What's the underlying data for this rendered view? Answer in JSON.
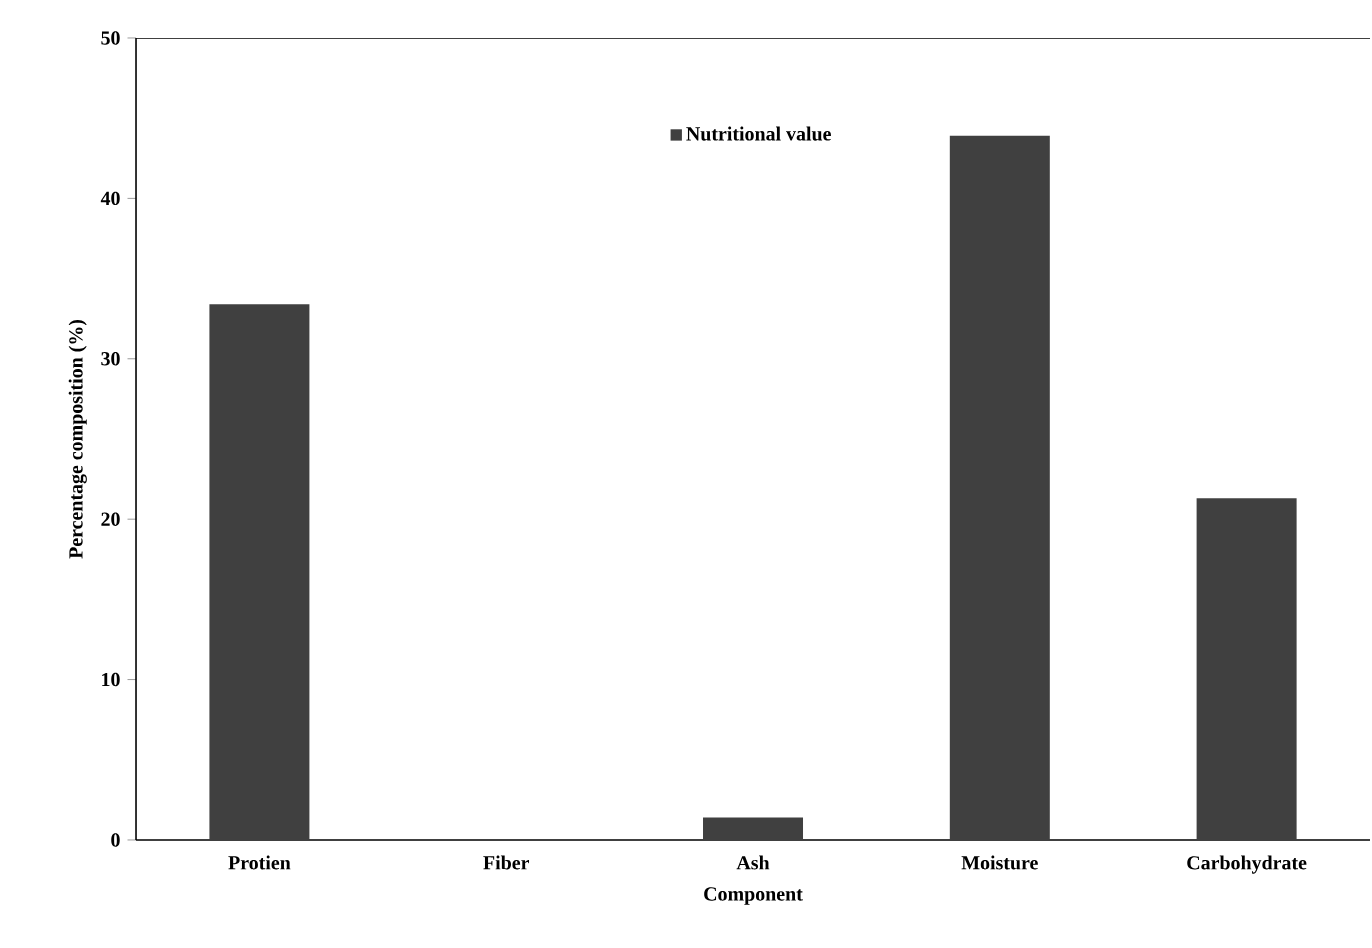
{
  "chart_data": {
    "type": "bar",
    "xlabel": "Component",
    "ylabel": "Percentage composition (%)",
    "categories": [
      "Protien",
      "Fiber",
      "Ash",
      "Moisture",
      "Carbohydrate"
    ],
    "series": [
      {
        "name": "Nutritional value",
        "color": "#404040",
        "values": [
          33.4,
          0,
          1.4,
          43.9,
          21.3
        ]
      }
    ],
    "ylim": [
      0,
      50
    ],
    "yticks": [
      0,
      10,
      20,
      30,
      40,
      50
    ],
    "legend": "top",
    "grid": false
  }
}
